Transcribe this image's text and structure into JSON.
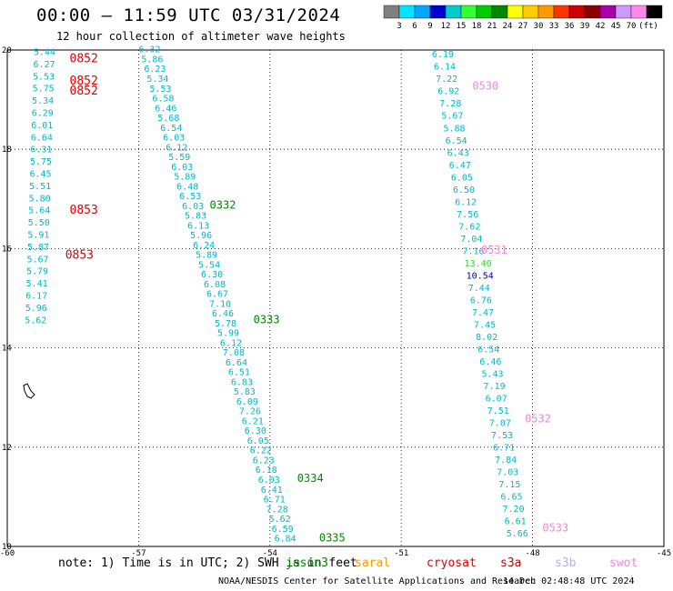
{
  "title": "00:00 – 11:59 UTC 03/31/2024",
  "subtitle": "12 hour collection of altimeter wave heights",
  "colorbar": {
    "colors": [
      "#808080",
      "#00e5ff",
      "#00a8ff",
      "#0000cc",
      "#00cccc",
      "#33ff33",
      "#00cc00",
      "#008800",
      "#ffff00",
      "#ffcc00",
      "#ff9900",
      "#ff3300",
      "#cc0000",
      "#880000",
      "#aa00aa",
      "#cc99ff",
      "#ff88ee",
      "#000000"
    ],
    "labels": [
      "3",
      "6",
      "9",
      "12",
      "15",
      "18",
      "21",
      "24",
      "27",
      "30",
      "33",
      "36",
      "39",
      "42",
      "45",
      "70"
    ],
    "unit": "(ft)"
  },
  "axes": {
    "x_ticks": [
      "-60",
      "-57",
      "-54",
      "-51",
      "-48",
      "-45"
    ],
    "y_ticks": [
      "20",
      "18",
      "16",
      "14",
      "12",
      "10"
    ]
  },
  "colors": {
    "jason3": "#008800",
    "saral": "#ff9900",
    "cryosat": "#dd0000",
    "s3a": "#cc0000",
    "s3b": "#c8a8f0",
    "swot": "#ee88dd",
    "swh_low": "#00b8cc",
    "swh_mid": "#33dd33",
    "swh_high": "#0000aa"
  },
  "tracks": {
    "track_a": {
      "times": [
        {
          "t": "0852",
          "lon": -59.2,
          "lat": 19.75
        },
        {
          "t": "0852",
          "lon": -59.2,
          "lat": 19.3
        },
        {
          "t": "0852",
          "lon": -59.2,
          "lat": 19.1
        },
        {
          "t": "0853",
          "lon": -59.2,
          "lat": 16.7
        },
        {
          "t": "0853",
          "lon": -59.3,
          "lat": 15.8
        }
      ],
      "swh": [
        "5.44",
        "6.27",
        "5.53",
        "5.75",
        "5.34",
        "6.29",
        "6.01",
        "6.64",
        "6.31",
        "5.75",
        "6.45",
        "5.51",
        "5.80",
        "5.64",
        "5.50",
        "5.91",
        "5.87",
        "5.67",
        "5.79",
        "5.41",
        "6.17",
        "5.96",
        "5.62"
      ]
    },
    "track_b": {
      "times": [
        {
          "t": "0332",
          "lon": -56.0,
          "lat": 16.8
        },
        {
          "t": "0333",
          "lon": -55.0,
          "lat": 14.5
        },
        {
          "t": "0334",
          "lon": -54.0,
          "lat": 11.3
        },
        {
          "t": "0335",
          "lon": -53.5,
          "lat": 10.1
        }
      ],
      "swh": [
        "6.32",
        "5.86",
        "6.23",
        "5.34",
        "5.53",
        "6.58",
        "6.46",
        "5.68",
        "6.54",
        "6.03",
        "6.12",
        "5.59",
        "6.03",
        "5.89",
        "6.48",
        "6.53",
        "6.03",
        "5.83",
        "6.13",
        "5.96",
        "6.24",
        "5.89",
        "5.54",
        "6.30",
        "6.08",
        "6.67",
        "7.10",
        "6.46",
        "5.78",
        "5.99",
        "6.12",
        "7.08",
        "6.64",
        "6.51",
        "6.83",
        "5.83",
        "6.09",
        "7.26",
        "6.21",
        "6.30",
        "6.05",
        "6.22",
        "6.23",
        "6.18",
        "6.03",
        "6.41",
        "6.71",
        "7.28",
        "5.62",
        "6.59",
        "6.84"
      ]
    },
    "track_c": {
      "times": [
        {
          "t": "0530",
          "lon": -50.0,
          "lat": 19.2
        },
        {
          "t": "0531",
          "lon": -49.8,
          "lat": 15.9
        },
        {
          "t": "0532",
          "lon": -48.8,
          "lat": 12.5
        },
        {
          "t": "0533",
          "lon": -48.4,
          "lat": 10.3
        }
      ],
      "swh": [
        "6.19",
        "6.14",
        "7.22",
        "6.92",
        "7.28",
        "5.67",
        "5.88",
        "6.54",
        "6.43",
        "6.47",
        "6.05",
        "6.50",
        "6.12",
        "7.56",
        "7.62",
        "7.04",
        "7.16",
        "13.40",
        "10.54",
        "7.44",
        "6.76",
        "7.47",
        "7.45",
        "8.02",
        "6.54",
        "6.46",
        "5.43",
        "7.19",
        "6.07",
        "7.51",
        "7.07",
        "7.53",
        "6.71",
        "7.84",
        "7.03",
        "7.15",
        "6.65",
        "7.20",
        "6.61",
        "5.66"
      ]
    }
  },
  "footer": {
    "note": "note: 1) Time is in UTC; 2) SWH is in feet",
    "legend": [
      "jason3",
      "saral",
      "cryosat",
      "s3a",
      "s3b",
      "swot"
    ],
    "credit": "NOAA/NESDIS Center for Satellite Applications and Research",
    "timestamp": "14 Dec 02:48:48 UTC 2024"
  }
}
